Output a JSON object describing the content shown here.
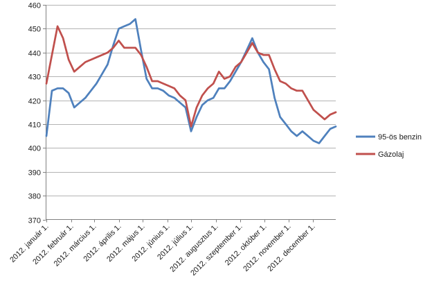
{
  "chart_data": {
    "type": "line",
    "title": "",
    "x_axis": {
      "tick_labels": [
        "2012. január 1.",
        "2012. február 1.",
        "2012. március 1.",
        "2012. április 1.",
        "2012. május 1.",
        "2012. június 1.",
        "2012. július 1.",
        "2012. augusztus 1.",
        "2012. szeptember 1.",
        "2012. október 1.",
        "2012. november 1.",
        "2012. december 1."
      ],
      "tick_week_positions": [
        0,
        4.4286,
        8.5714,
        13,
        17.2857,
        21.7143,
        26,
        30.4286,
        34.8571,
        39.1429,
        43.5714,
        47.8571
      ],
      "points_per_series": 53,
      "sampling": "weekly"
    },
    "y_axis": {
      "min": 370,
      "max": 460,
      "step": 10,
      "tick_labels": [
        "370",
        "380",
        "390",
        "400",
        "410",
        "420",
        "430",
        "440",
        "450",
        "460"
      ]
    },
    "series": [
      {
        "name": "95-ös benzin",
        "color": "#4F81BD",
        "values": [
          405,
          424,
          425,
          425,
          423,
          417,
          419,
          421,
          424,
          427,
          431,
          435,
          443,
          450,
          451,
          452,
          454,
          441,
          429,
          425,
          425,
          424,
          422,
          421,
          419,
          417,
          407,
          413,
          418,
          420,
          421,
          425,
          425,
          428,
          432,
          436,
          441,
          446,
          440,
          436,
          433,
          421,
          413,
          410,
          407,
          405,
          407,
          405,
          403,
          402,
          405,
          408,
          409
        ]
      },
      {
        "name": "Gázolaj",
        "color": "#C0504D",
        "values": [
          427,
          439,
          451,
          446,
          437,
          432,
          434,
          436,
          437,
          438,
          439,
          440,
          442,
          445,
          442,
          442,
          442,
          439,
          434,
          428,
          428,
          427,
          426,
          425,
          422,
          420,
          409,
          417,
          422,
          425,
          427,
          432,
          429,
          430,
          434,
          436,
          440,
          444,
          440,
          439,
          439,
          433,
          428,
          427,
          425,
          424,
          424,
          420,
          416,
          414,
          412,
          414,
          415
        ]
      }
    ],
    "legend": {
      "position": "right",
      "items": [
        "95-ös benzin",
        "Gázolaj"
      ]
    },
    "grid": true,
    "colors": {
      "gridline": "#b3b3b3",
      "axis": "#808080",
      "tick": "#808080",
      "text": "#1a1a1a",
      "background": "#ffffff"
    }
  }
}
